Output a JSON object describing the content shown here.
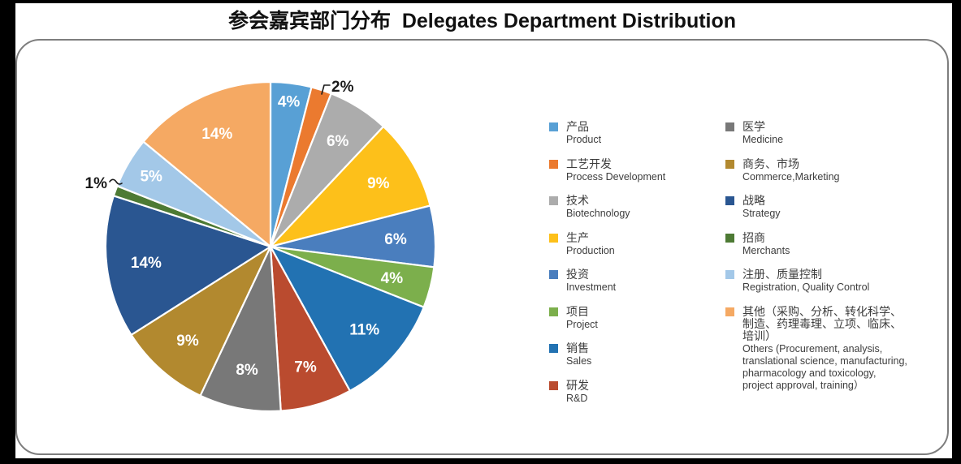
{
  "chart_data": {
    "type": "pie",
    "title": "参会嘉宾部门分布  Delegates Department Distribution",
    "title_zh": "参会嘉宾部门分布",
    "title_en": "Delegates Department Distribution",
    "unit": "%",
    "start_angle_deg": 0,
    "direction": "clockwise",
    "grid": false,
    "legend_position": "right",
    "label_colors": {
      "inside": "#FFFFFF",
      "callout": "#1A1A1A"
    },
    "slices": [
      {
        "zh": "产品",
        "en": "Product",
        "value": 4,
        "label": "4%",
        "color": "#58A0D5",
        "label_style": "inside"
      },
      {
        "zh": "工艺开发",
        "en": "Process Development",
        "value": 2,
        "label": "2%",
        "color": "#EB7A2F",
        "label_style": "callout"
      },
      {
        "zh": "技术",
        "en": "Biotechnology",
        "value": 6,
        "label": "6%",
        "color": "#ACACAC",
        "label_style": "inside"
      },
      {
        "zh": "生产",
        "en": "Production",
        "value": 9,
        "label": "9%",
        "color": "#FDC01A",
        "label_style": "inside"
      },
      {
        "zh": "投资",
        "en": "Investment",
        "value": 6,
        "label": "6%",
        "color": "#4A7EBE",
        "label_style": "inside"
      },
      {
        "zh": "项目",
        "en": "Project",
        "value": 4,
        "label": "4%",
        "color": "#7CAF4C",
        "label_style": "inside"
      },
      {
        "zh": "销售",
        "en": "Sales",
        "value": 11,
        "label": "11%",
        "color": "#2272B2",
        "label_style": "inside"
      },
      {
        "zh": "研发",
        "en": "R&D",
        "value": 7,
        "label": "7%",
        "color": "#BA4B2F",
        "label_style": "inside"
      },
      {
        "zh": "医学",
        "en": "Medicine",
        "value": 8,
        "label": "8%",
        "color": "#787878",
        "label_style": "inside"
      },
      {
        "zh": "商务、市场",
        "en": "Commerce,Marketing",
        "value": 9,
        "label": "9%",
        "color": "#B2892F",
        "label_style": "inside"
      },
      {
        "zh": "战略",
        "en": "Strategy",
        "value": 14,
        "label": "14%",
        "color": "#2A5691",
        "label_style": "inside"
      },
      {
        "zh": "招商",
        "en": "Merchants",
        "value": 1,
        "label": "1%",
        "color": "#4D7A34",
        "label_style": "callout"
      },
      {
        "zh": "注册、质量控制",
        "en": "Registration, Quality Control",
        "value": 5,
        "label": "5%",
        "color": "#A3C8E8",
        "label_style": "inside"
      },
      {
        "zh": "其他（采购、分析、转化科学、\n制造、药理毒理、立项、临床、\n培训）",
        "en": "Others (Procurement, analysis,\ntranslational science, manufacturing,\npharmacology and toxicology,\nproject approval, training）",
        "value": 14,
        "label": "14%",
        "color": "#F5A963",
        "label_style": "inside"
      }
    ],
    "legend_columns": [
      [
        0,
        1,
        2,
        3,
        4,
        5,
        6,
        7
      ],
      [
        8,
        9,
        10,
        11,
        12,
        13
      ]
    ]
  }
}
